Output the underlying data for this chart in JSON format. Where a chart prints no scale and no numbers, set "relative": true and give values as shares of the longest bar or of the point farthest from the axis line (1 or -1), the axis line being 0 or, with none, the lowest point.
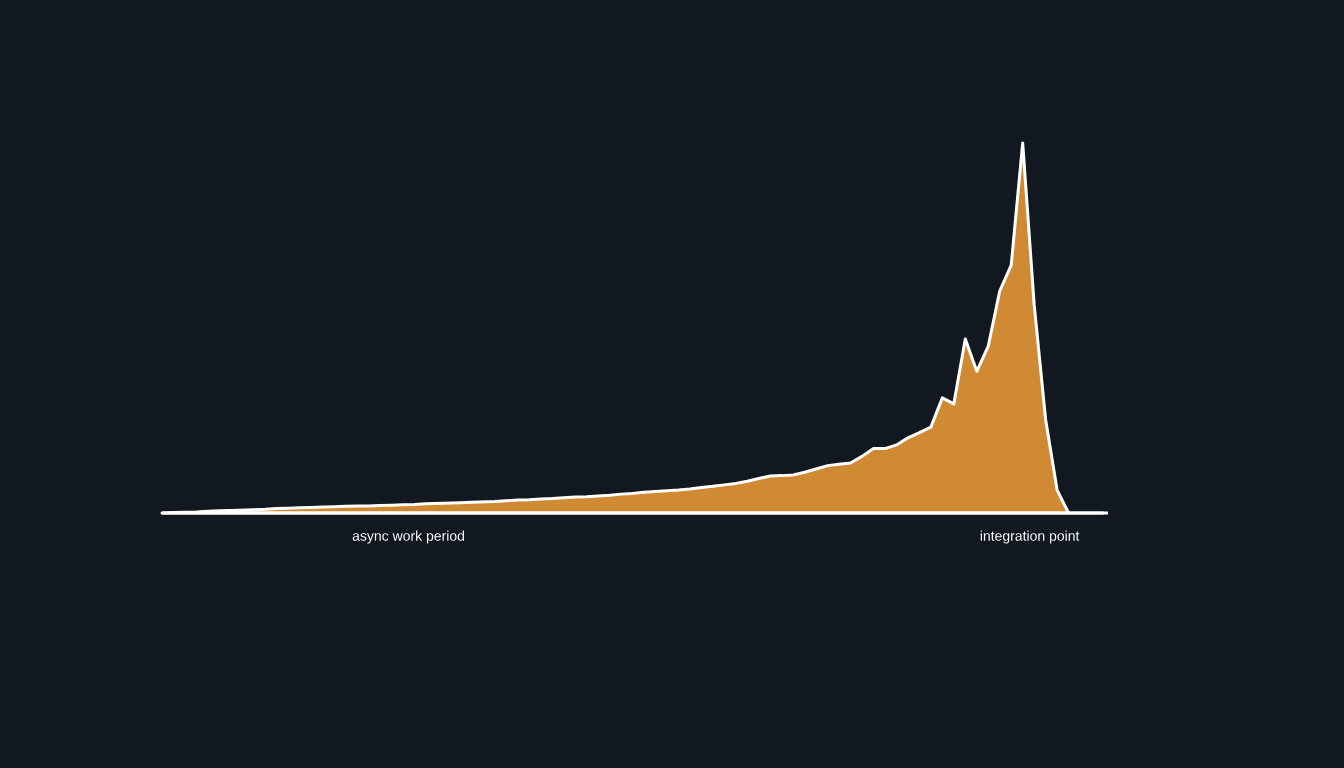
{
  "chart_data": {
    "type": "area",
    "relative": true,
    "categories": [
      null,
      null,
      null,
      null,
      null,
      null,
      null,
      null,
      null,
      null,
      null,
      null,
      null,
      null,
      null,
      null,
      null,
      null,
      null,
      null,
      null,
      null,
      null,
      null,
      null,
      null,
      null,
      null,
      null,
      null,
      null,
      null,
      null,
      null,
      null,
      null,
      null,
      null,
      null,
      null,
      null,
      null,
      null,
      null,
      null,
      null,
      null,
      null,
      null,
      null,
      null,
      null,
      null,
      null,
      null,
      null,
      null,
      null,
      null,
      null,
      null,
      null,
      null,
      null,
      null,
      null,
      null,
      null,
      null,
      null,
      null,
      null,
      null,
      null,
      null,
      null,
      null,
      null,
      null,
      null,
      null,
      null,
      null
    ],
    "series": [
      {
        "color": "#cf8a33",
        "values": [
          0,
          0.001,
          0.002,
          0.003,
          0.005,
          0.006,
          0.007,
          0.008,
          0.009,
          0.01,
          0.012,
          0.013,
          0.014,
          0.015,
          0.016,
          0.017,
          0.018,
          0.019,
          0.019,
          0.02,
          0.021,
          0.022,
          0.023,
          0.025,
          0.026,
          0.027,
          0.028,
          0.029,
          0.03,
          0.031,
          0.033,
          0.035,
          0.036,
          0.038,
          0.039,
          0.041,
          0.043,
          0.044,
          0.046,
          0.048,
          0.051,
          0.053,
          0.056,
          0.058,
          0.06,
          0.062,
          0.065,
          0.069,
          0.072,
          0.076,
          0.08,
          0.086,
          0.093,
          0.1,
          0.101,
          0.103,
          0.11,
          0.119,
          0.128,
          0.132,
          0.135,
          0.153,
          0.174,
          0.174,
          0.184,
          0.203,
          0.217,
          0.232,
          0.311,
          0.295,
          0.47,
          0.383,
          0.451,
          0.6,
          0.67,
          1,
          0.563,
          0.252,
          0.062,
          0,
          0,
          0,
          0
        ]
      }
    ],
    "annotations": [
      "async work period",
      "integration point"
    ],
    "line_style": "solid"
  }
}
